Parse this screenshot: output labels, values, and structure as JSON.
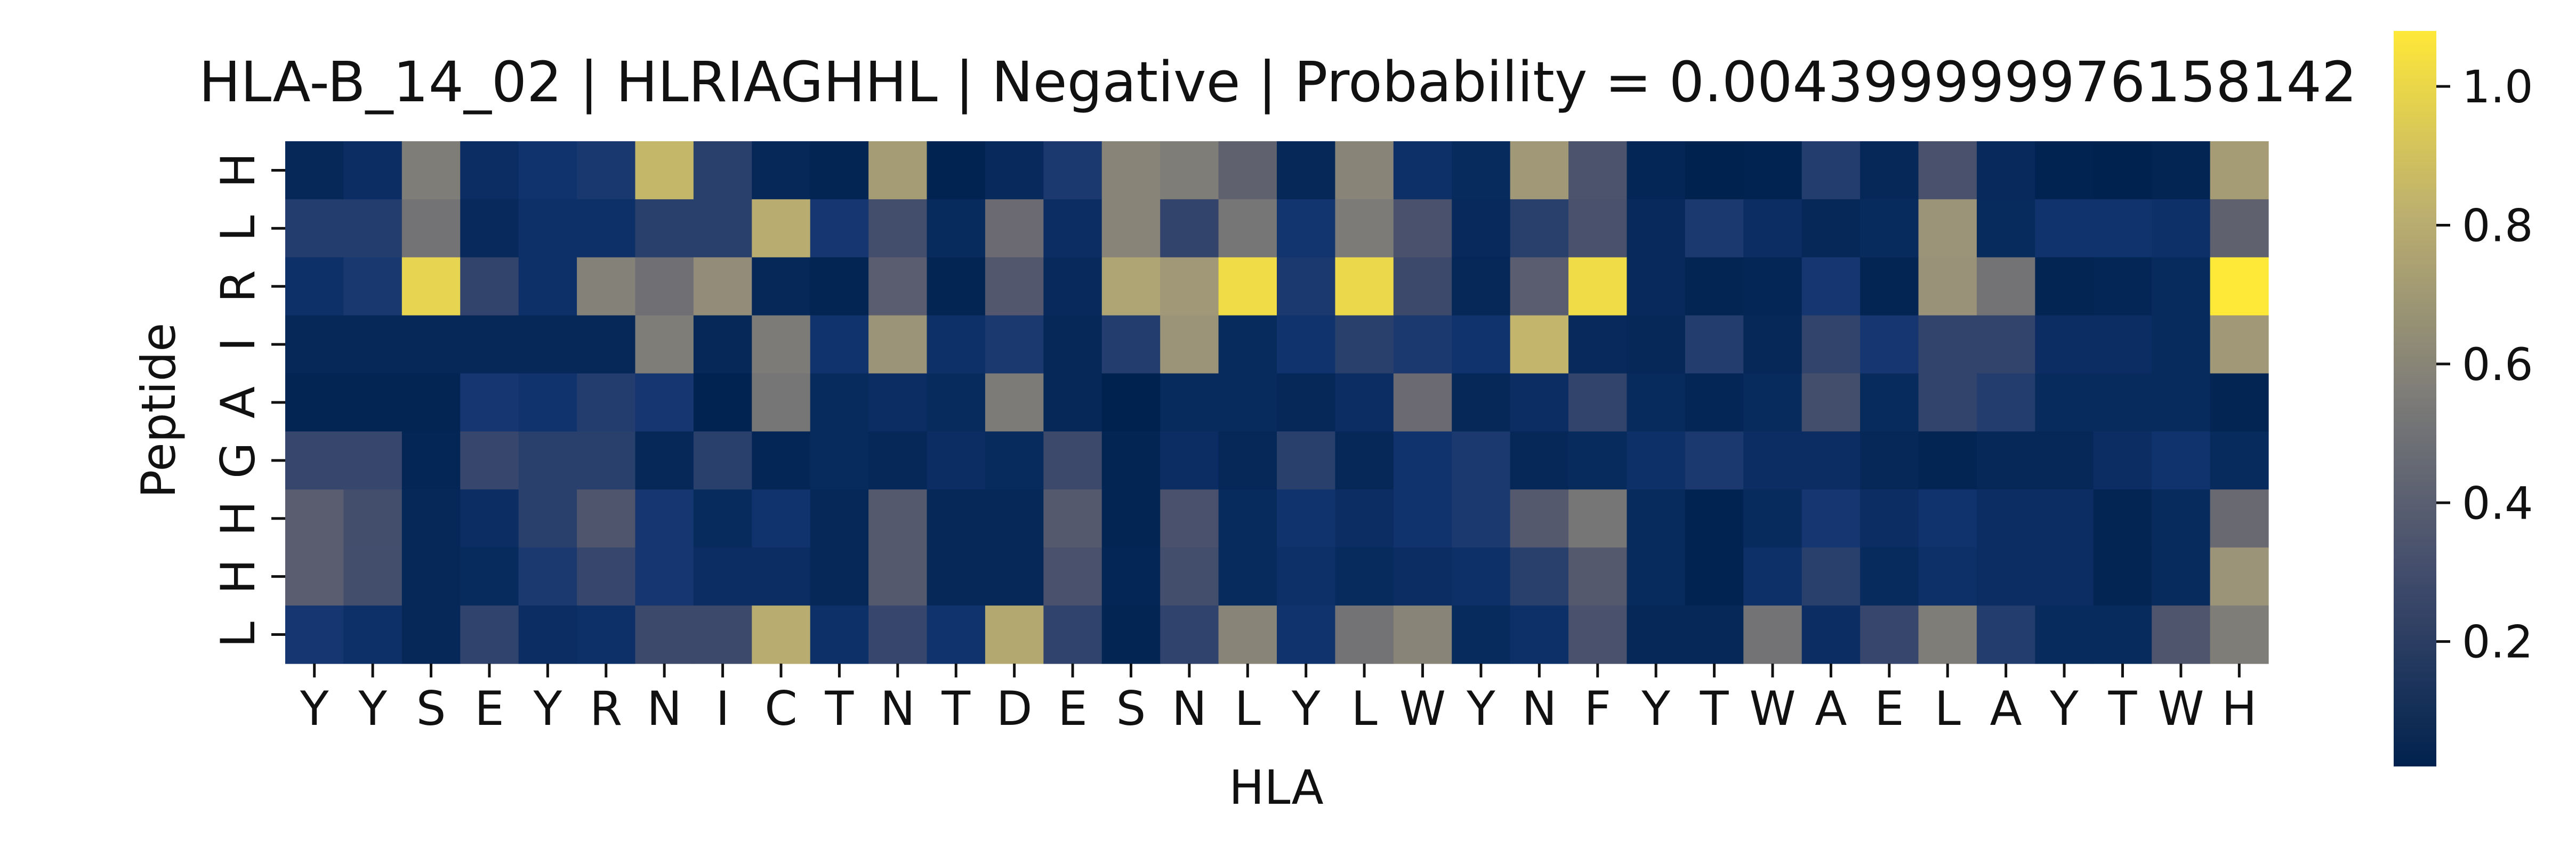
{
  "chart_data": {
    "type": "heatmap",
    "title": "HLA-B_14_02 | HLRIAGHHL | Negative | Probability = 0.004399999976158142",
    "xlabel": "HLA",
    "ylabel": "Peptide",
    "x_tick_labels": [
      "Y",
      "Y",
      "S",
      "E",
      "Y",
      "R",
      "N",
      "I",
      "C",
      "T",
      "N",
      "T",
      "D",
      "E",
      "S",
      "N",
      "L",
      "Y",
      "L",
      "W",
      "Y",
      "N",
      "F",
      "Y",
      "T",
      "W",
      "A",
      "E",
      "L",
      "A",
      "Y",
      "T",
      "W",
      "H"
    ],
    "y_tick_labels": [
      "H",
      "L",
      "R",
      "I",
      "A",
      "G",
      "H",
      "H",
      "L"
    ],
    "colormap": "cividis",
    "colorbar": {
      "min": 0.02,
      "max": 1.08,
      "ticks": [
        0.2,
        0.4,
        0.6,
        0.8,
        1.0
      ],
      "tick_labels": [
        "0.2",
        "0.4",
        "0.6",
        "0.8",
        "1.0"
      ]
    },
    "values": [
      [
        0.06,
        0.1,
        0.56,
        0.1,
        0.14,
        0.17,
        0.85,
        0.22,
        0.06,
        0.04,
        0.72,
        0.03,
        0.07,
        0.18,
        0.6,
        0.56,
        0.4,
        0.06,
        0.6,
        0.12,
        0.08,
        0.7,
        0.33,
        0.05,
        0.02,
        0.03,
        0.2,
        0.06,
        0.32,
        0.07,
        0.03,
        0.02,
        0.04,
        0.72
      ],
      [
        0.2,
        0.2,
        0.5,
        0.07,
        0.12,
        0.12,
        0.22,
        0.22,
        0.8,
        0.16,
        0.3,
        0.08,
        0.45,
        0.1,
        0.6,
        0.25,
        0.52,
        0.15,
        0.55,
        0.32,
        0.07,
        0.22,
        0.32,
        0.07,
        0.18,
        0.1,
        0.06,
        0.08,
        0.68,
        0.08,
        0.14,
        0.14,
        0.12,
        0.4
      ],
      [
        0.12,
        0.17,
        0.98,
        0.25,
        0.12,
        0.58,
        0.48,
        0.64,
        0.06,
        0.04,
        0.38,
        0.04,
        0.35,
        0.07,
        0.76,
        0.7,
        1.02,
        0.18,
        1.0,
        0.28,
        0.06,
        0.38,
        1.02,
        0.07,
        0.04,
        0.05,
        0.16,
        0.04,
        0.67,
        0.5,
        0.04,
        0.05,
        0.08,
        1.08
      ],
      [
        0.06,
        0.06,
        0.06,
        0.06,
        0.06,
        0.06,
        0.56,
        0.06,
        0.55,
        0.14,
        0.68,
        0.12,
        0.18,
        0.06,
        0.2,
        0.68,
        0.08,
        0.14,
        0.22,
        0.18,
        0.14,
        0.84,
        0.07,
        0.06,
        0.2,
        0.06,
        0.25,
        0.16,
        0.25,
        0.25,
        0.1,
        0.1,
        0.08,
        0.7
      ],
      [
        0.04,
        0.04,
        0.04,
        0.16,
        0.14,
        0.2,
        0.16,
        0.03,
        0.52,
        0.08,
        0.1,
        0.08,
        0.55,
        0.06,
        0.02,
        0.08,
        0.08,
        0.06,
        0.1,
        0.45,
        0.06,
        0.1,
        0.25,
        0.08,
        0.05,
        0.08,
        0.3,
        0.08,
        0.25,
        0.2,
        0.08,
        0.08,
        0.08,
        0.04
      ],
      [
        0.26,
        0.26,
        0.05,
        0.26,
        0.22,
        0.22,
        0.06,
        0.22,
        0.05,
        0.08,
        0.06,
        0.1,
        0.08,
        0.28,
        0.04,
        0.1,
        0.06,
        0.22,
        0.06,
        0.14,
        0.18,
        0.06,
        0.08,
        0.12,
        0.18,
        0.1,
        0.1,
        0.06,
        0.04,
        0.06,
        0.06,
        0.1,
        0.14,
        0.08
      ],
      [
        0.38,
        0.3,
        0.06,
        0.1,
        0.22,
        0.34,
        0.16,
        0.08,
        0.14,
        0.06,
        0.36,
        0.06,
        0.06,
        0.36,
        0.04,
        0.32,
        0.08,
        0.14,
        0.1,
        0.14,
        0.18,
        0.36,
        0.52,
        0.08,
        0.03,
        0.08,
        0.16,
        0.1,
        0.14,
        0.1,
        0.1,
        0.04,
        0.08,
        0.44
      ],
      [
        0.38,
        0.3,
        0.06,
        0.08,
        0.18,
        0.26,
        0.16,
        0.1,
        0.1,
        0.06,
        0.36,
        0.06,
        0.06,
        0.32,
        0.05,
        0.3,
        0.08,
        0.12,
        0.08,
        0.1,
        0.12,
        0.22,
        0.36,
        0.08,
        0.03,
        0.12,
        0.22,
        0.08,
        0.12,
        0.1,
        0.1,
        0.04,
        0.08,
        0.68
      ],
      [
        0.16,
        0.12,
        0.06,
        0.24,
        0.1,
        0.12,
        0.28,
        0.28,
        0.8,
        0.12,
        0.26,
        0.14,
        0.78,
        0.24,
        0.04,
        0.24,
        0.6,
        0.14,
        0.5,
        0.6,
        0.08,
        0.12,
        0.32,
        0.06,
        0.06,
        0.5,
        0.1,
        0.26,
        0.56,
        0.2,
        0.08,
        0.08,
        0.34,
        0.56
      ]
    ]
  }
}
